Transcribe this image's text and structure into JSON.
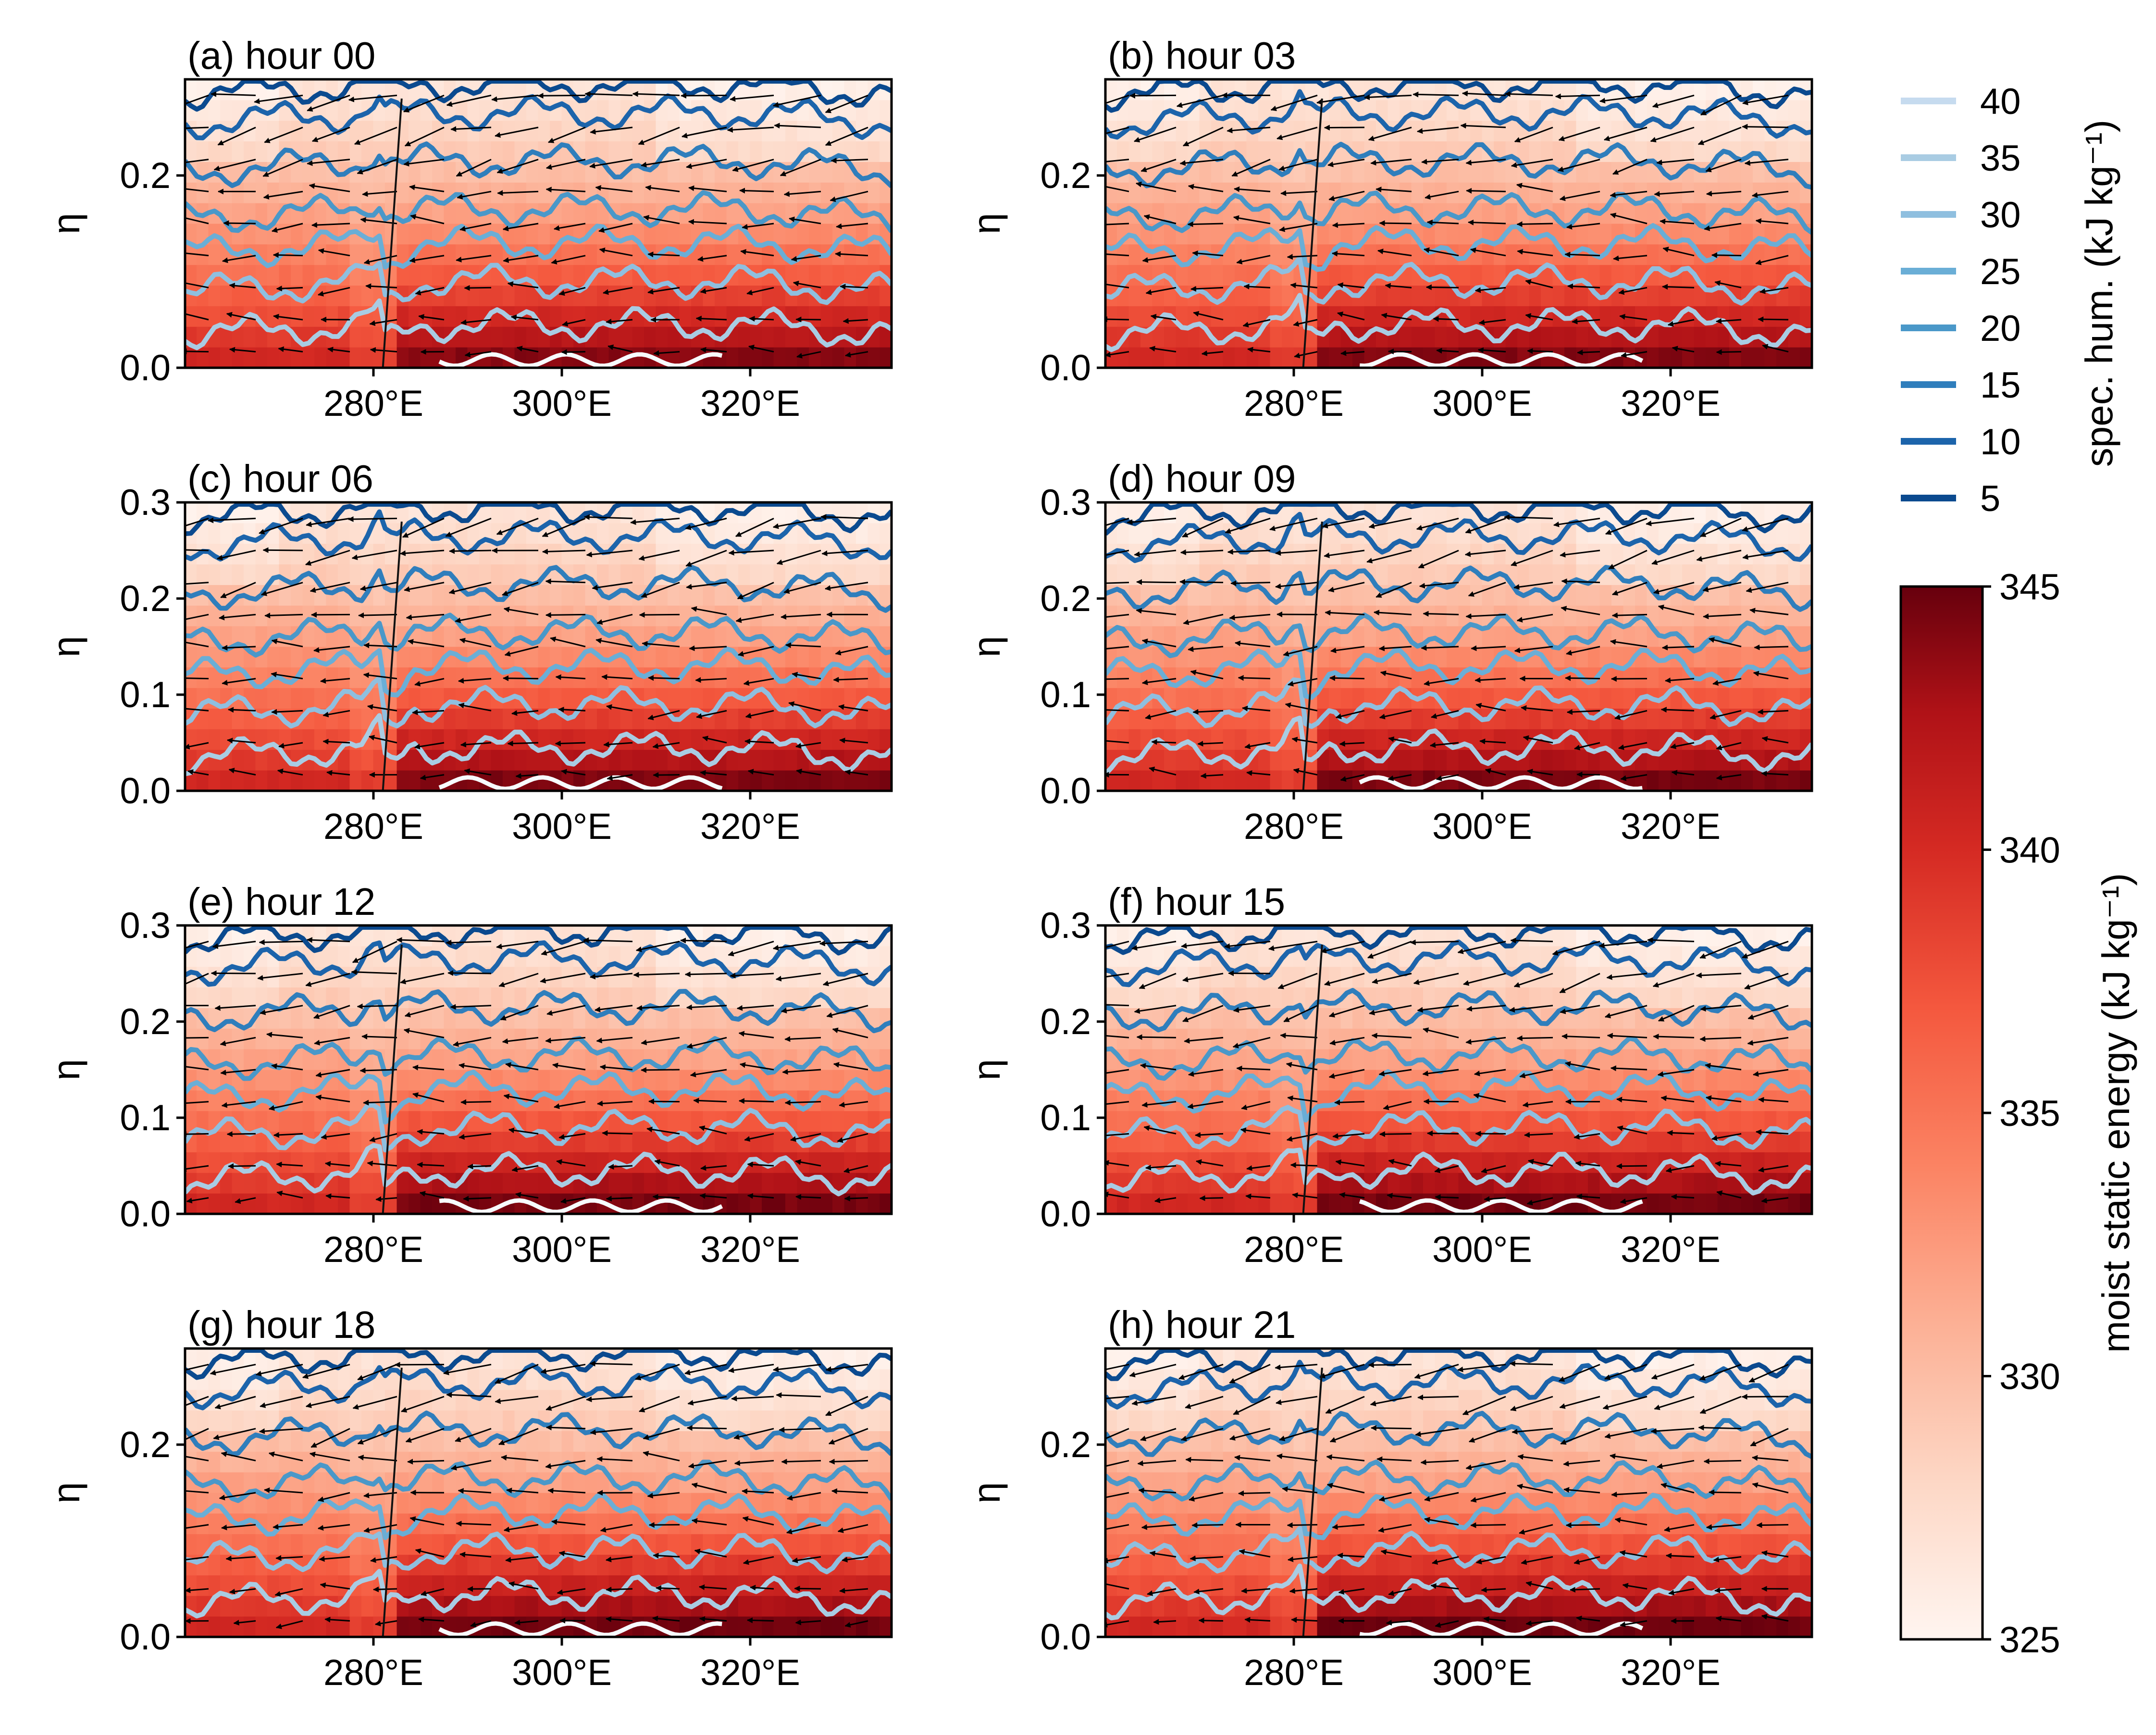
{
  "chart_data": {
    "type": "heatmap",
    "figure": "multi-panel longitude-eta cross sections",
    "panels": [
      {
        "id": "a",
        "title": "(a) hour 00",
        "hour": 0,
        "yticks": [
          "0.0",
          "0.2"
        ],
        "xticks": [
          "280°E",
          "300°E",
          "320°E"
        ]
      },
      {
        "id": "b",
        "title": "(b) hour 03",
        "hour": 3,
        "yticks": [
          "0.0",
          "0.2"
        ],
        "xticks": [
          "280°E",
          "300°E",
          "320°E"
        ]
      },
      {
        "id": "c",
        "title": "(c) hour 06",
        "hour": 6,
        "yticks": [
          "0.0",
          "0.1",
          "0.2",
          "0.3"
        ],
        "xticks": [
          "280°E",
          "300°E",
          "320°E"
        ]
      },
      {
        "id": "d",
        "title": "(d) hour 09",
        "hour": 9,
        "yticks": [
          "0.0",
          "0.1",
          "0.2",
          "0.3"
        ],
        "xticks": [
          "280°E",
          "300°E",
          "320°E"
        ]
      },
      {
        "id": "e",
        "title": "(e) hour 12",
        "hour": 12,
        "yticks": [
          "0.0",
          "0.1",
          "0.2",
          "0.3"
        ],
        "xticks": [
          "280°E",
          "300°E",
          "320°E"
        ]
      },
      {
        "id": "f",
        "title": "(f) hour 15",
        "hour": 15,
        "yticks": [
          "0.0",
          "0.1",
          "0.2",
          "0.3"
        ],
        "xticks": [
          "280°E",
          "300°E",
          "320°E"
        ]
      },
      {
        "id": "g",
        "title": "(g) hour 18",
        "hour": 18,
        "yticks": [
          "0.0",
          "0.2"
        ],
        "xticks": [
          "280°E",
          "300°E",
          "320°E"
        ]
      },
      {
        "id": "h",
        "title": "(h) hour 21",
        "hour": 21,
        "yticks": [
          "0.0",
          "0.2"
        ],
        "xticks": [
          "280°E",
          "300°E",
          "320°E"
        ]
      }
    ],
    "ylabel": "η",
    "xlim": [
      260,
      335
    ],
    "ylim": [
      0,
      0.3
    ],
    "contour_legend": {
      "label": "spec. hum. (kJ kg⁻¹)",
      "levels": [
        "40",
        "35",
        "30",
        "25",
        "20",
        "15",
        "10",
        "5"
      ],
      "colors": [
        "#c6dbef",
        "#a9cce3",
        "#8fbfdf",
        "#6aaed6",
        "#4a98c9",
        "#2f7ebc",
        "#1c64ab",
        "#0b4a8f"
      ],
      "contour_heights": [
        0.0,
        0.045,
        0.09,
        0.13,
        0.165,
        0.215,
        0.265,
        0.295
      ]
    },
    "colorbar": {
      "label": "moist static energy (kJ kg⁻¹)",
      "min": 325,
      "max": 345,
      "ticks": [
        "325",
        "330",
        "335",
        "340",
        "345"
      ],
      "colormap": "Reds"
    },
    "front_longitude": 281,
    "wind_vectors": "arrows shown"
  }
}
